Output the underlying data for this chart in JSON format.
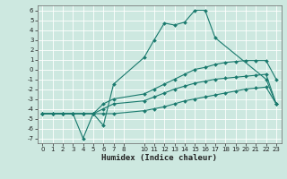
{
  "title": "",
  "xlabel": "Humidex (Indice chaleur)",
  "bg_color": "#cde8e0",
  "grid_color": "#b0d0c8",
  "line_color": "#1a7a6e",
  "xlim": [
    -0.5,
    23.5
  ],
  "ylim": [
    -7.5,
    6.5
  ],
  "xticks": [
    0,
    1,
    2,
    3,
    4,
    5,
    6,
    7,
    8,
    10,
    11,
    12,
    13,
    14,
    15,
    16,
    17,
    18,
    19,
    20,
    21,
    22,
    23
  ],
  "yticks": [
    -7,
    -6,
    -5,
    -4,
    -3,
    -2,
    -1,
    0,
    1,
    2,
    3,
    4,
    5,
    6
  ],
  "series": [
    {
      "x": [
        0,
        1,
        2,
        3,
        4,
        5,
        6,
        7,
        10,
        11,
        12,
        13,
        14,
        15,
        16,
        17,
        22,
        23
      ],
      "y": [
        -4.5,
        -4.5,
        -4.5,
        -4.5,
        -7.0,
        -4.5,
        -5.7,
        -1.5,
        1.2,
        3.0,
        4.7,
        4.5,
        4.8,
        6.0,
        6.0,
        3.2,
        -1.0,
        -3.5
      ]
    },
    {
      "x": [
        0,
        1,
        2,
        3,
        4,
        5,
        6,
        7,
        10,
        11,
        12,
        13,
        14,
        15,
        16,
        17,
        18,
        19,
        20,
        21,
        22,
        23
      ],
      "y": [
        -4.5,
        -4.5,
        -4.5,
        -4.5,
        -4.5,
        -4.5,
        -3.5,
        -3.0,
        -2.5,
        -2.0,
        -1.5,
        -1.0,
        -0.5,
        0.0,
        0.2,
        0.5,
        0.7,
        0.8,
        0.9,
        0.9,
        0.9,
        -1.0
      ]
    },
    {
      "x": [
        0,
        1,
        2,
        3,
        4,
        5,
        6,
        7,
        10,
        11,
        12,
        13,
        14,
        15,
        16,
        17,
        18,
        19,
        20,
        21,
        22,
        23
      ],
      "y": [
        -4.5,
        -4.5,
        -4.5,
        -4.5,
        -4.5,
        -4.5,
        -4.0,
        -3.5,
        -3.2,
        -2.8,
        -2.4,
        -2.0,
        -1.7,
        -1.4,
        -1.2,
        -1.0,
        -0.9,
        -0.8,
        -0.7,
        -0.6,
        -0.5,
        -3.5
      ]
    },
    {
      "x": [
        0,
        1,
        2,
        3,
        4,
        5,
        6,
        7,
        10,
        11,
        12,
        13,
        14,
        15,
        16,
        17,
        18,
        19,
        20,
        21,
        22,
        23
      ],
      "y": [
        -4.5,
        -4.5,
        -4.5,
        -4.5,
        -4.5,
        -4.5,
        -4.5,
        -4.5,
        -4.2,
        -4.0,
        -3.8,
        -3.5,
        -3.2,
        -3.0,
        -2.8,
        -2.6,
        -2.4,
        -2.2,
        -2.0,
        -1.9,
        -1.8,
        -3.5
      ]
    }
  ]
}
